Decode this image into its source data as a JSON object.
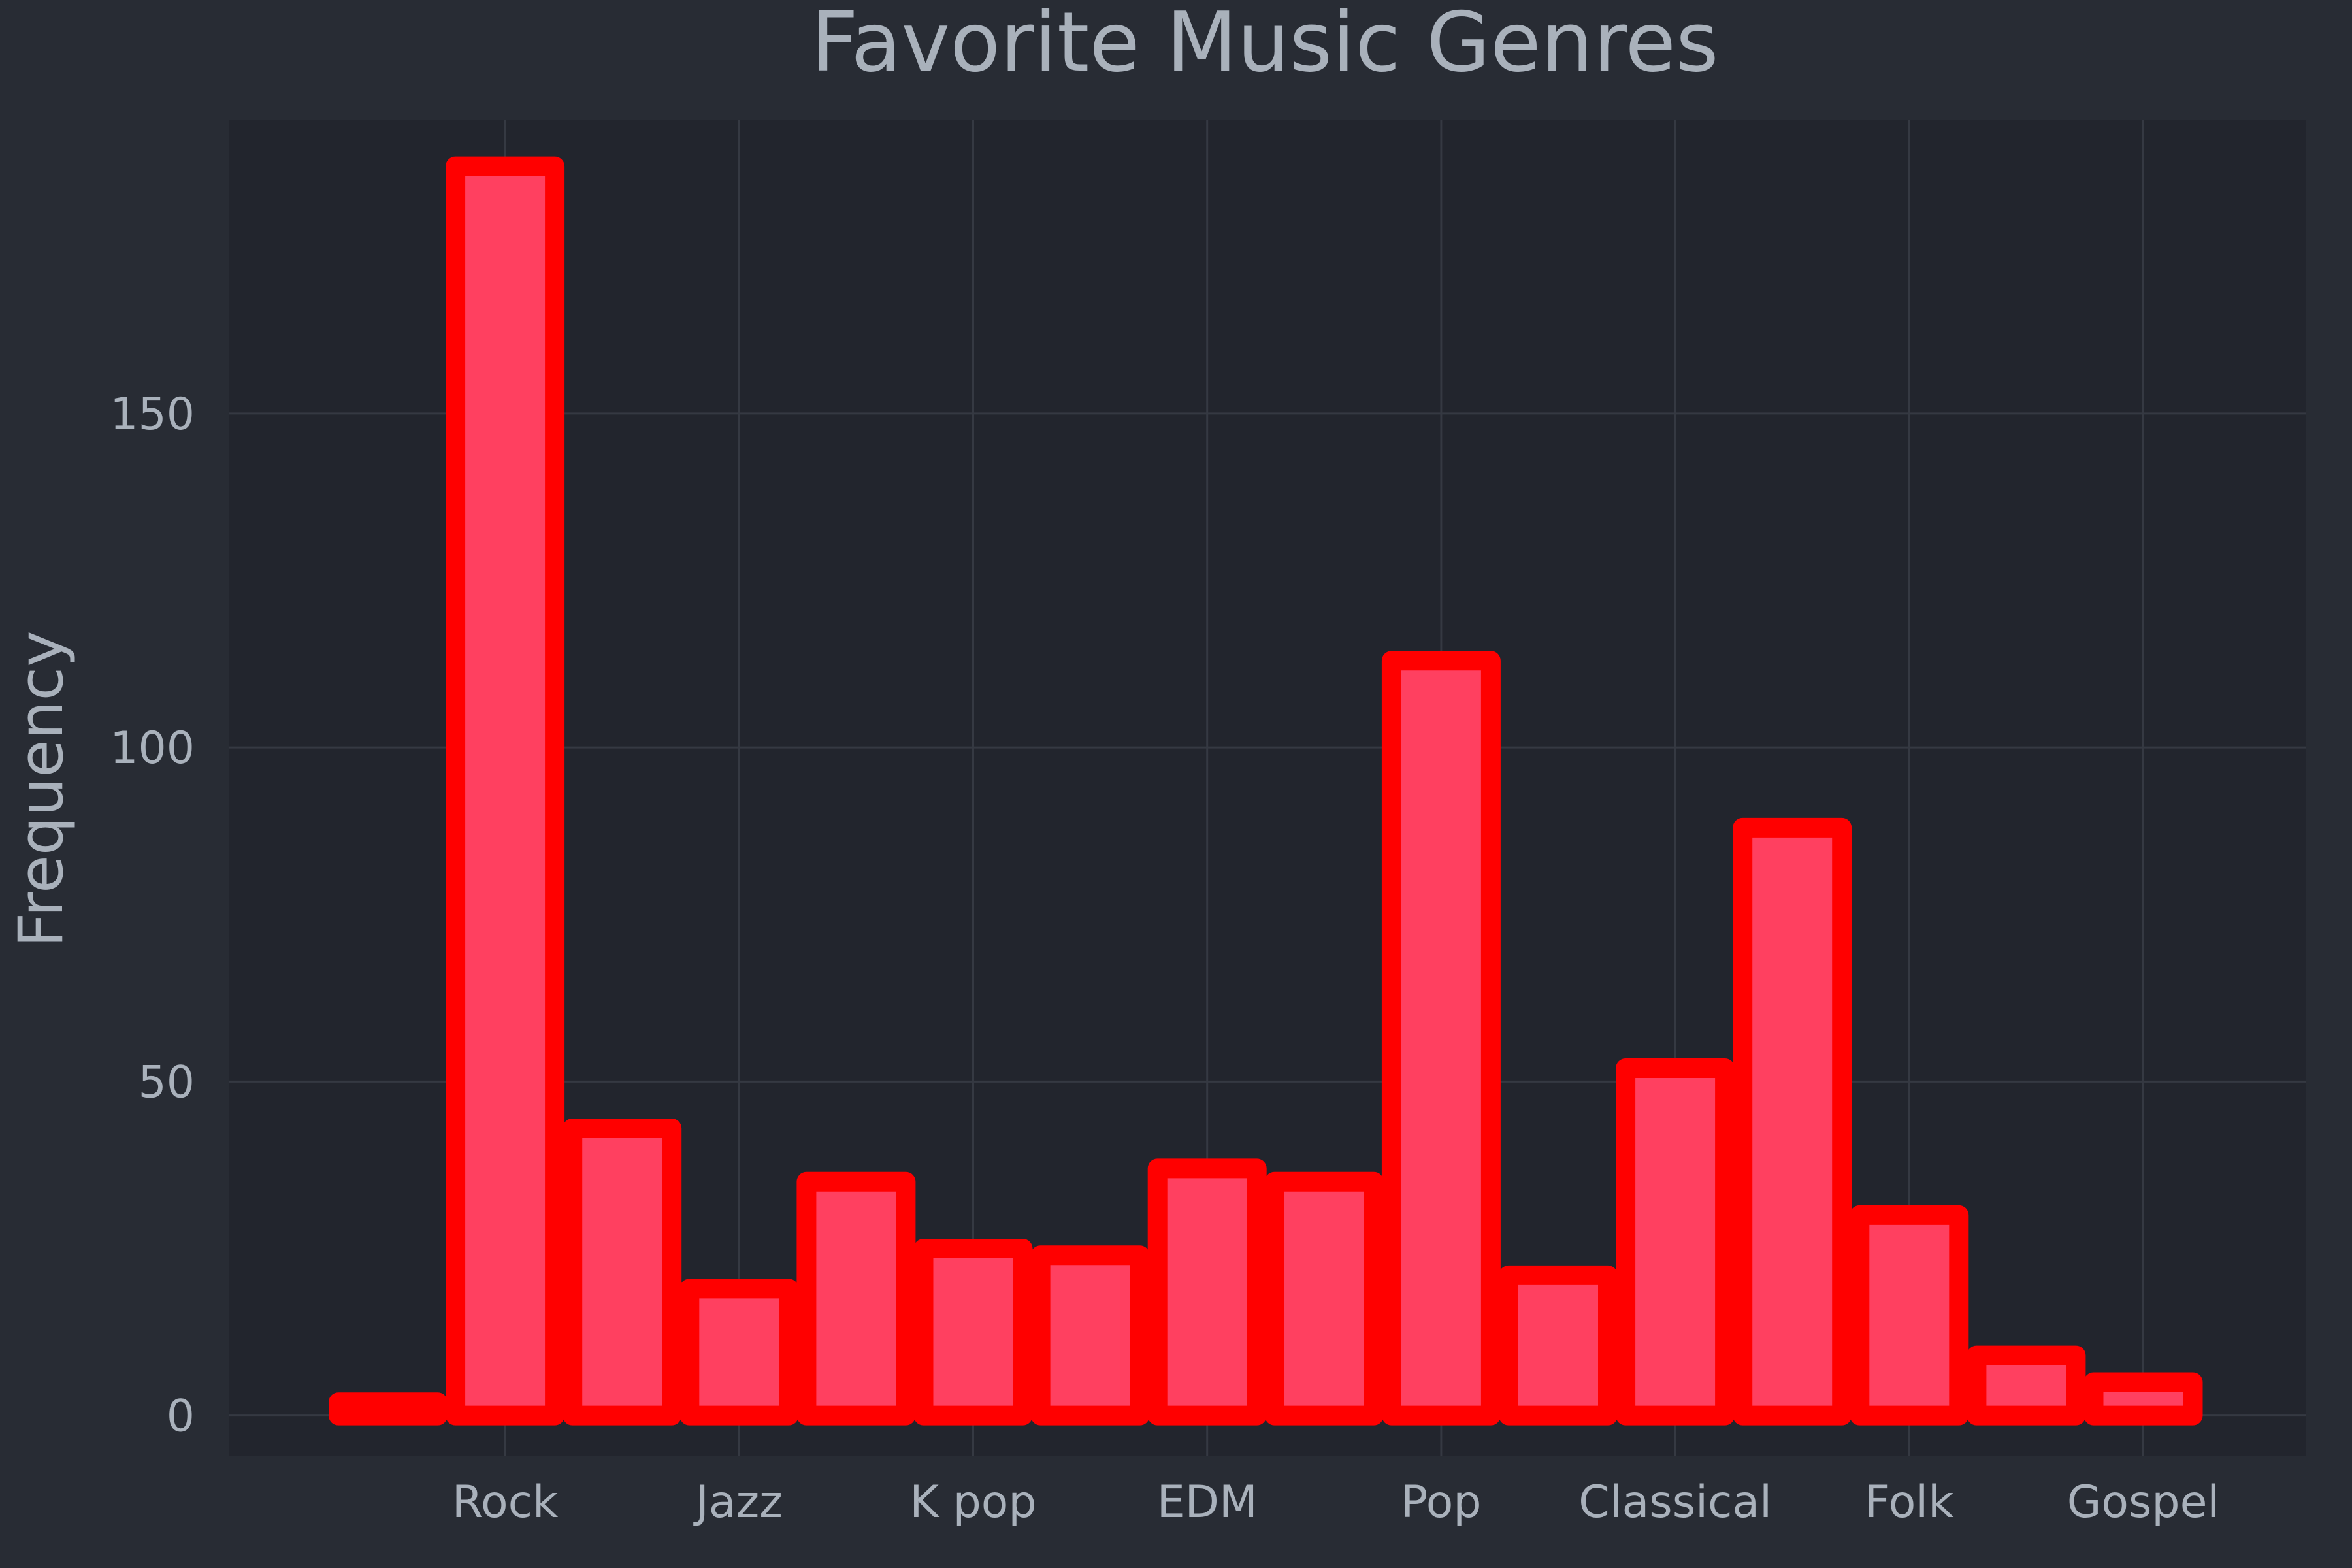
{
  "chart_data": {
    "type": "bar",
    "title": "Favorite Music Genres",
    "xlabel": "",
    "ylabel": "Frequency",
    "ylim": [
      -6,
      194
    ],
    "yticks": [
      0,
      50,
      100,
      150
    ],
    "xtick_labels": [
      "Rock",
      "Jazz",
      "K pop",
      "EDM",
      "Pop",
      "Classical",
      "Folk",
      "Gospel"
    ],
    "categories": [
      "",
      "Rock",
      "",
      "Jazz",
      "",
      "K pop",
      "",
      "EDM",
      "",
      "Pop",
      "",
      "Classical",
      "",
      "Folk",
      "",
      "Gospel"
    ],
    "values": [
      2,
      187,
      43,
      19,
      35,
      25,
      24,
      37,
      35,
      113,
      21,
      52,
      88,
      30,
      9,
      5
    ],
    "grid": true,
    "colors": {
      "background": "#282c34",
      "plot_background": "#22252d",
      "grid": "#353942",
      "bar_fill": "#ff4060",
      "bar_edge": "#ff0000",
      "text": "#a9b1bb"
    }
  }
}
